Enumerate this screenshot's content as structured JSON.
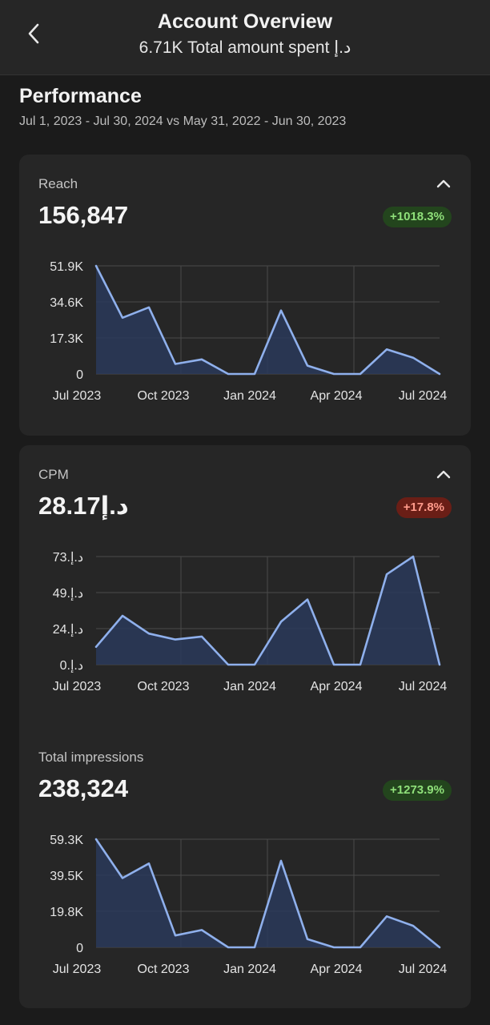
{
  "header": {
    "title": "Account Overview",
    "subtitle": "6.71K Total amount spent د.إ"
  },
  "performance": {
    "title": "Performance",
    "range": "Jul 1, 2023 - Jul 30, 2024 vs May 31, 2022 - Jun 30, 2023"
  },
  "colors": {
    "line": "#8fb0ec",
    "fill": "#2a3a5a",
    "positive": "#8fe07a",
    "negative": "#ff9a8a"
  },
  "metrics": [
    {
      "label": "Reach",
      "value": "156,847",
      "change": "+1018.3%",
      "trend": "positive",
      "collapse_icon": "chevron-up-icon"
    },
    {
      "label": "CPM",
      "value": "28.17د.إ",
      "change": "+17.8%",
      "trend": "negative",
      "collapse_icon": "chevron-up-icon"
    },
    {
      "label": "Total impressions",
      "value": "238,324",
      "change": "+1273.9%",
      "trend": "positive"
    }
  ],
  "chart_data": [
    {
      "type": "area",
      "x_ticks": [
        "Jul 2023",
        "Oct 2023",
        "Jan 2024",
        "Apr 2024",
        "Jul 2024"
      ],
      "y_ticks": [
        "51.9K",
        "34.6K",
        "17.3K",
        "0"
      ],
      "ylim": [
        0,
        51900
      ],
      "values": [
        51900,
        27000,
        32000,
        4800,
        7000,
        0,
        0,
        30500,
        4000,
        0,
        0,
        11800,
        7800,
        0
      ]
    },
    {
      "type": "area",
      "x_ticks": [
        "Jul 2023",
        "Oct 2023",
        "Jan 2024",
        "Apr 2024",
        "Jul 2024"
      ],
      "y_ticks": [
        "73.د.إ",
        "49.د.إ",
        "24.د.إ",
        "0.د.إ"
      ],
      "ylim": [
        0,
        73
      ],
      "values": [
        12,
        33,
        21,
        17,
        19,
        0,
        0,
        29,
        44,
        0,
        0,
        61,
        73,
        0
      ]
    },
    {
      "type": "area",
      "x_ticks": [
        "Jul 2023",
        "Oct 2023",
        "Jan 2024",
        "Apr 2024",
        "Jul 2024"
      ],
      "y_ticks": [
        "59.3K",
        "39.5K",
        "19.8K",
        "0"
      ],
      "ylim": [
        0,
        59300
      ],
      "values": [
        59300,
        38000,
        46000,
        6500,
        9500,
        0,
        0,
        47500,
        4500,
        0,
        0,
        17000,
        11800,
        0
      ]
    }
  ]
}
